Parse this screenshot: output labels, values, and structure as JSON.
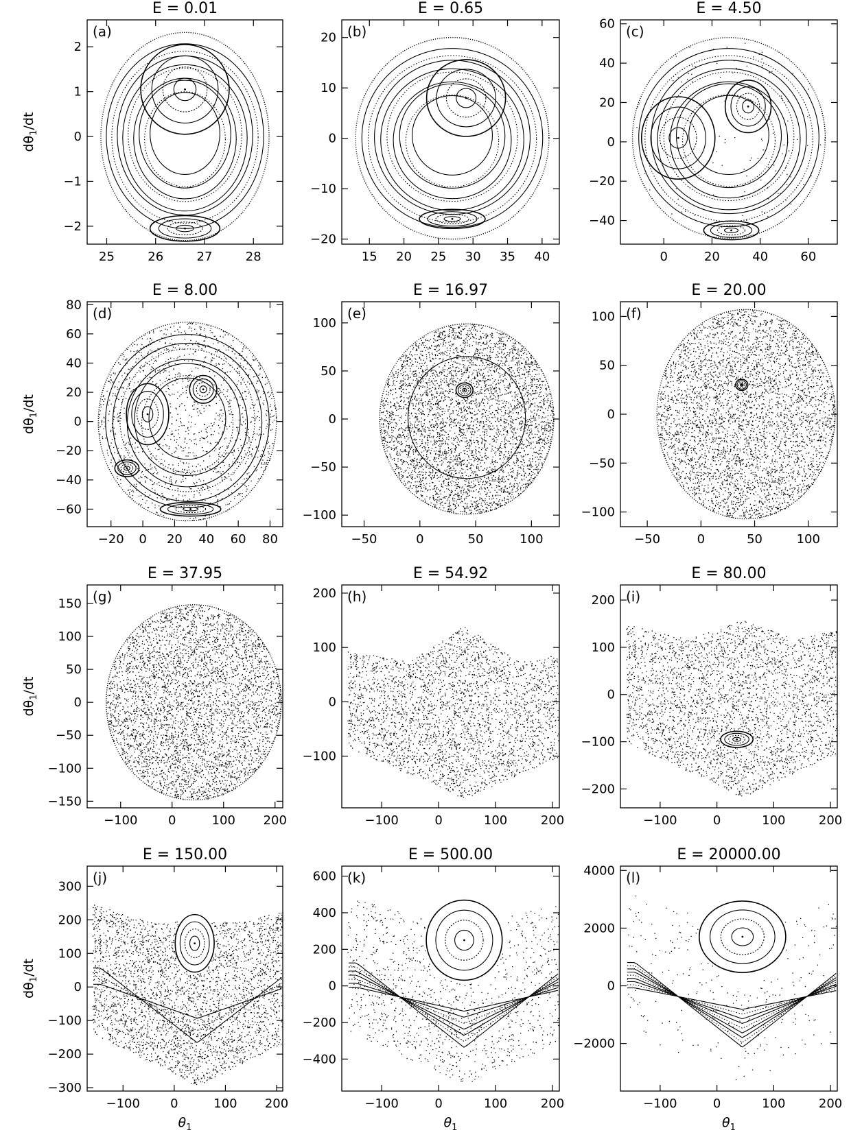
{
  "figure": {
    "ylabel_text": "dθ₁/dt",
    "ylabel_main": "dθ",
    "ylabel_sub": "1",
    "ylabel_tail": "/dt",
    "xlabel_main": "θ",
    "xlabel_sub": "1"
  },
  "chart_data": [
    {
      "type": "scatter",
      "panel": "(a)",
      "title": "E = 0.01",
      "xlim": [
        24.6,
        28.6
      ],
      "ylim": [
        -2.4,
        2.6
      ],
      "xticks": [
        25,
        26,
        27,
        28
      ],
      "yticks": [
        -2,
        -1,
        0,
        1,
        2
      ],
      "boundary": {
        "cx": 26.6,
        "cy": 0,
        "rx": 1.72,
        "ry": 2.32
      },
      "islands": [
        {
          "x": 26.6,
          "y": 1.05,
          "sx": 0.95,
          "sy": 1.05
        },
        {
          "x": 26.6,
          "y": -2.05,
          "sx": 0.75,
          "sy": 0.3
        }
      ],
      "chaos": 0,
      "left_y": null,
      "right_y": null
    },
    {
      "type": "scatter",
      "panel": "(b)",
      "title": "E = 0.65",
      "xlim": [
        11,
        42.5
      ],
      "ylim": [
        -21,
        23.5
      ],
      "xticks": [
        15,
        20,
        25,
        30,
        35,
        40
      ],
      "yticks": [
        -20,
        -10,
        0,
        10,
        20
      ],
      "boundary": {
        "cx": 27,
        "cy": 0,
        "rx": 14,
        "ry": 20
      },
      "islands": [
        {
          "x": 29,
          "y": 8,
          "sx": 6,
          "sy": 8
        },
        {
          "x": 27,
          "y": -16,
          "sx": 5,
          "sy": 2
        }
      ],
      "chaos": 0,
      "left_y": null,
      "right_y": null
    },
    {
      "type": "scatter",
      "panel": "(c)",
      "title": "E = 4.50",
      "xlim": [
        -18,
        72
      ],
      "ylim": [
        -52,
        62
      ],
      "xticks": [
        0,
        20,
        40,
        60
      ],
      "yticks": [
        -40,
        -20,
        0,
        20,
        40,
        60
      ],
      "boundary": {
        "cx": 27,
        "cy": 2,
        "rx": 40,
        "ry": 51
      },
      "islands": [
        {
          "x": 6,
          "y": 2,
          "sx": 16,
          "sy": 22
        },
        {
          "x": 35,
          "y": 18,
          "sx": 10,
          "sy": 14
        },
        {
          "x": 28,
          "y": -45,
          "sx": 12,
          "sy": 5
        }
      ],
      "chaos": 0.02,
      "left_y": null,
      "right_y": null
    },
    {
      "type": "scatter",
      "panel": "(d)",
      "title": "E = 8.00",
      "xlim": [
        -35,
        88
      ],
      "ylim": [
        -72,
        82
      ],
      "xticks": [
        -20,
        0,
        20,
        40,
        60,
        80
      ],
      "yticks": [
        -60,
        -40,
        -20,
        0,
        20,
        40,
        60,
        80
      ],
      "boundary": {
        "cx": 28,
        "cy": 0,
        "rx": 56,
        "ry": 68
      },
      "islands": [
        {
          "x": 3,
          "y": 5,
          "sx": 14,
          "sy": 22
        },
        {
          "x": 38,
          "y": 22,
          "sx": 9,
          "sy": 10
        },
        {
          "x": -10,
          "y": -32,
          "sx": 8,
          "sy": 6
        },
        {
          "x": 30,
          "y": -60,
          "sx": 20,
          "sy": 5
        }
      ],
      "chaos": 0.25,
      "left_y": null,
      "right_y": null
    },
    {
      "type": "scatter",
      "panel": "(e)",
      "title": "E = 16.97",
      "xlim": [
        -70,
        125
      ],
      "ylim": [
        -112,
        122
      ],
      "xticks": [
        -50,
        0,
        50,
        100
      ],
      "yticks": [
        -100,
        -50,
        0,
        50,
        100
      ],
      "boundary": {
        "cx": 42,
        "cy": 0,
        "rx": 78,
        "ry": 99
      },
      "islands": [
        {
          "x": 40,
          "y": 30,
          "sx": 8,
          "sy": 8
        }
      ],
      "chaos": 0.85,
      "left_y": null,
      "right_y": null
    },
    {
      "type": "scatter",
      "panel": "(f)",
      "title": "E = 20.00",
      "xlim": [
        -75,
        127
      ],
      "ylim": [
        -115,
        115
      ],
      "xticks": [
        -50,
        0,
        50,
        100
      ],
      "yticks": [
        -100,
        -50,
        0,
        50,
        100
      ],
      "boundary": {
        "cx": 42,
        "cy": 0,
        "rx": 83,
        "ry": 107
      },
      "islands": [
        {
          "x": 38,
          "y": 30,
          "sx": 6,
          "sy": 6
        }
      ],
      "chaos": 0.95,
      "left_y": null,
      "right_y": null
    },
    {
      "type": "scatter",
      "panel": "(g)",
      "title": "E = 37.95",
      "xlim": [
        -165,
        215
      ],
      "ylim": [
        -160,
        178
      ],
      "xticks": [
        -100,
        0,
        100,
        200
      ],
      "yticks": [
        -150,
        -100,
        -50,
        0,
        50,
        100,
        150
      ],
      "boundary": {
        "cx": 42,
        "cy": 0,
        "rx": 170,
        "ry": 148
      },
      "islands": [],
      "chaos": 0.95,
      "left_y": null,
      "right_y": null
    },
    {
      "type": "scatter",
      "panel": "(h)",
      "title": "E = 54.92",
      "xlim": [
        -170,
        212
      ],
      "ylim": [
        -195,
        215
      ],
      "xticks": [
        -100,
        0,
        100,
        200
      ],
      "yticks": [
        -100,
        0,
        100,
        200
      ],
      "boundary": {
        "cx": 45,
        "cy": 0,
        "rx": 210,
        "ry": 178
      },
      "islands": [],
      "chaos": 0.95,
      "left_y": 95,
      "right_y": 95
    },
    {
      "type": "scatter",
      "panel": "(i)",
      "title": "E = 80.00",
      "xlim": [
        -170,
        212
      ],
      "ylim": [
        -240,
        232
      ],
      "xticks": [
        -100,
        0,
        100,
        200
      ],
      "yticks": [
        -200,
        -100,
        0,
        100,
        200
      ],
      "boundary": {
        "cx": 45,
        "cy": 0,
        "rx": 210,
        "ry": 218
      },
      "islands": [
        {
          "x": 35,
          "y": -95,
          "sx": 30,
          "sy": 18
        }
      ],
      "chaos": 0.95,
      "left_y": 150,
      "right_y": 150
    },
    {
      "type": "scatter",
      "panel": "(j)",
      "title": "E = 150.00",
      "xlim": [
        -170,
        212
      ],
      "ylim": [
        -310,
        360
      ],
      "xticks": [
        -100,
        0,
        100,
        200
      ],
      "yticks": [
        -300,
        -200,
        -100,
        0,
        100,
        200,
        300
      ],
      "boundary": {
        "cx": 45,
        "cy": 0,
        "rx": 210,
        "ry": 295
      },
      "islands": [
        {
          "x": 40,
          "y": 130,
          "sx": 40,
          "sy": 90
        }
      ],
      "chaos": 0.7,
      "left_y": 250,
      "right_y": 250
    },
    {
      "type": "scatter",
      "panel": "(k)",
      "title": "E = 500.00",
      "xlim": [
        -170,
        212
      ],
      "ylim": [
        -575,
        655
      ],
      "xticks": [
        -100,
        0,
        100,
        200
      ],
      "yticks": [
        -400,
        -200,
        0,
        200,
        400,
        600
      ],
      "boundary": {
        "cx": 45,
        "cy": 0,
        "rx": 210,
        "ry": 540
      },
      "islands": [
        {
          "x": 45,
          "y": 250,
          "sx": 70,
          "sy": 230
        }
      ],
      "chaos": 0.2,
      "left_y": 500,
      "right_y": 500
    },
    {
      "type": "scatter",
      "panel": "(l)",
      "title": "E = 20000.00",
      "xlim": [
        -170,
        212
      ],
      "ylim": [
        -3650,
        4150
      ],
      "xticks": [
        -100,
        0,
        100,
        200
      ],
      "yticks": [
        -2000,
        0,
        2000,
        4000
      ],
      "boundary": {
        "cx": 45,
        "cy": 0,
        "rx": 210,
        "ry": 3350
      },
      "islands": [
        {
          "x": 45,
          "y": 1700,
          "sx": 80,
          "sy": 1300
        }
      ],
      "chaos": 0.05,
      "left_y": 3300,
      "right_y": 3300
    }
  ]
}
